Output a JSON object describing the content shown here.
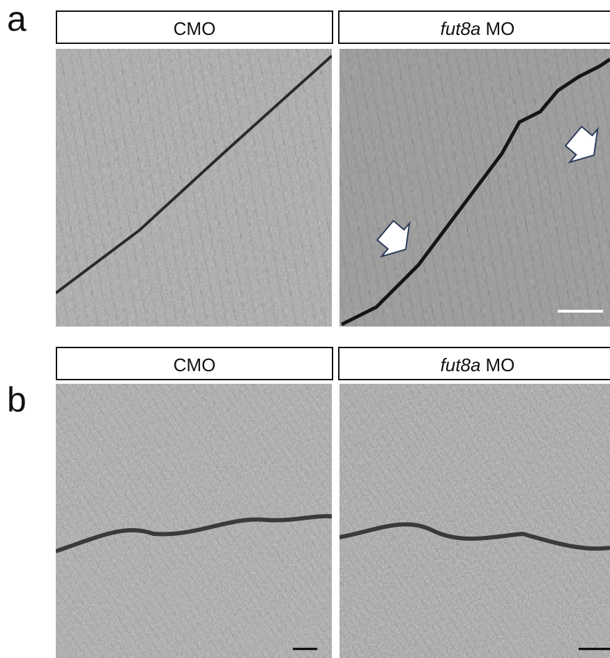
{
  "panels": [
    {
      "label": "a",
      "columns": [
        {
          "title": "CMO"
        },
        {
          "title_italic": "fut8a",
          "title": "MO"
        }
      ]
    },
    {
      "label": "b",
      "columns": [
        {
          "title": "CMO"
        },
        {
          "title_italic": "fut8a",
          "title": "MO"
        }
      ]
    }
  ]
}
